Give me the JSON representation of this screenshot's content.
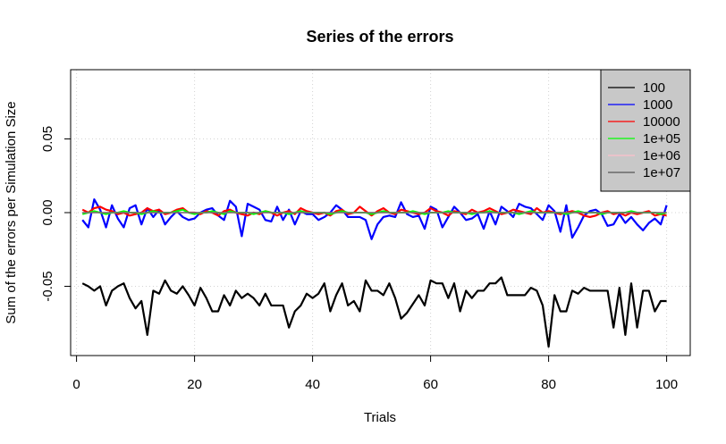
{
  "chart_data": {
    "type": "line",
    "title": "Series of the errors",
    "xlabel": "Trials",
    "ylabel": "Sum of the errors per Simulation Size",
    "xlim": [
      -1,
      104
    ],
    "ylim": [
      -0.097,
      0.097
    ],
    "x_ticks": [
      0,
      20,
      40,
      60,
      80,
      100
    ],
    "x_tick_labels": [
      "0",
      "20",
      "40",
      "60",
      "80",
      "100"
    ],
    "y_ticks": [
      -0.05,
      0.0,
      0.05
    ],
    "y_tick_labels": [
      "-0.05",
      "0.00",
      "0.05"
    ],
    "grid": true,
    "legend_position": "top-right",
    "x": [
      1,
      2,
      3,
      4,
      5,
      6,
      7,
      8,
      9,
      10,
      11,
      12,
      13,
      14,
      15,
      16,
      17,
      18,
      19,
      20,
      21,
      22,
      23,
      24,
      25,
      26,
      27,
      28,
      29,
      30,
      31,
      32,
      33,
      34,
      35,
      36,
      37,
      38,
      39,
      40,
      41,
      42,
      43,
      44,
      45,
      46,
      47,
      48,
      49,
      50,
      51,
      52,
      53,
      54,
      55,
      56,
      57,
      58,
      59,
      60,
      61,
      62,
      63,
      64,
      65,
      66,
      67,
      68,
      69,
      70,
      71,
      72,
      73,
      74,
      75,
      76,
      77,
      78,
      79,
      80,
      81,
      82,
      83,
      84,
      85,
      86,
      87,
      88,
      89,
      90,
      91,
      92,
      93,
      94,
      95,
      96,
      97,
      98,
      99,
      100
    ],
    "series": [
      {
        "name": "100",
        "color": "#000000",
        "values": [
          -0.048,
          -0.05,
          -0.053,
          -0.05,
          -0.063,
          -0.053,
          -0.05,
          -0.048,
          -0.058,
          -0.065,
          -0.06,
          -0.083,
          -0.053,
          -0.055,
          -0.046,
          -0.053,
          -0.055,
          -0.05,
          -0.056,
          -0.063,
          -0.051,
          -0.058,
          -0.067,
          -0.067,
          -0.056,
          -0.063,
          -0.053,
          -0.058,
          -0.055,
          -0.058,
          -0.063,
          -0.055,
          -0.063,
          -0.063,
          -0.063,
          -0.078,
          -0.067,
          -0.063,
          -0.055,
          -0.058,
          -0.055,
          -0.048,
          -0.067,
          -0.056,
          -0.048,
          -0.063,
          -0.06,
          -0.067,
          -0.046,
          -0.053,
          -0.053,
          -0.056,
          -0.048,
          -0.058,
          -0.072,
          -0.068,
          -0.062,
          -0.056,
          -0.063,
          -0.046,
          -0.048,
          -0.048,
          -0.058,
          -0.048,
          -0.067,
          -0.053,
          -0.058,
          -0.053,
          -0.053,
          -0.048,
          -0.048,
          -0.044,
          -0.056,
          -0.056,
          -0.056,
          -0.056,
          -0.051,
          -0.053,
          -0.063,
          -0.091,
          -0.056,
          -0.067,
          -0.067,
          -0.053,
          -0.055,
          -0.051,
          -0.053,
          -0.053,
          -0.053,
          -0.053,
          -0.078,
          -0.051,
          -0.083,
          -0.048,
          -0.078,
          -0.053,
          -0.053,
          -0.067,
          -0.06,
          -0.06
        ]
      },
      {
        "name": "1000",
        "color": "#0000ff",
        "values": [
          -0.005,
          -0.01,
          0.009,
          0.002,
          -0.01,
          0.005,
          -0.004,
          -0.01,
          0.003,
          0.005,
          -0.008,
          0.003,
          -0.003,
          0.002,
          -0.008,
          -0.003,
          0.001,
          -0.003,
          -0.005,
          -0.004,
          0.0,
          0.002,
          0.003,
          -0.002,
          -0.005,
          0.008,
          0.004,
          -0.016,
          0.006,
          0.004,
          0.002,
          -0.005,
          -0.006,
          0.004,
          -0.005,
          0.002,
          -0.008,
          0.001,
          -0.001,
          -0.001,
          -0.005,
          -0.003,
          0.0,
          0.005,
          0.002,
          -0.003,
          -0.003,
          -0.003,
          -0.005,
          -0.018,
          -0.008,
          -0.003,
          -0.002,
          -0.003,
          0.007,
          -0.001,
          -0.003,
          -0.002,
          -0.011,
          0.004,
          0.002,
          -0.01,
          -0.003,
          0.004,
          0.0,
          -0.005,
          -0.004,
          -0.001,
          -0.011,
          0.001,
          -0.008,
          0.004,
          0.001,
          -0.003,
          0.006,
          0.004,
          0.003,
          -0.001,
          -0.005,
          0.005,
          0.001,
          -0.013,
          0.005,
          -0.017,
          -0.01,
          -0.002,
          0.001,
          0.002,
          -0.001,
          -0.009,
          -0.008,
          -0.001,
          -0.007,
          -0.003,
          -0.008,
          -0.012,
          -0.007,
          -0.004,
          -0.008,
          0.005
        ]
      },
      {
        "name": "10000",
        "color": "#ff0000",
        "values": [
          0.002,
          0.0,
          0.003,
          0.004,
          0.002,
          0.001,
          -0.001,
          0.0,
          -0.002,
          -0.001,
          0.0,
          0.003,
          0.001,
          0.002,
          -0.001,
          0.0,
          0.002,
          0.003,
          0.0,
          0.0,
          -0.001,
          0.001,
          0.0,
          -0.002,
          0.001,
          0.002,
          0.0,
          -0.001,
          -0.002,
          0.0,
          -0.001,
          0.001,
          0.0,
          -0.002,
          0.0,
          0.001,
          -0.001,
          0.003,
          0.001,
          0.0,
          -0.001,
          0.0,
          -0.002,
          0.001,
          0.002,
          -0.001,
          0.0,
          0.004,
          0.001,
          -0.002,
          0.001,
          0.003,
          0.0,
          -0.001,
          0.002,
          0.001,
          0.0,
          -0.001,
          0.0,
          0.003,
          0.001,
          0.0,
          -0.002,
          0.001,
          0.0,
          -0.001,
          0.002,
          0.0,
          0.001,
          0.003,
          0.001,
          -0.001,
          0.0,
          0.002,
          0.001,
          0.0,
          -0.001,
          0.003,
          0.0,
          0.001,
          0.0,
          -0.001,
          0.0,
          0.001,
          0.0,
          -0.002,
          -0.003,
          -0.002,
          0.0,
          0.001,
          -0.001,
          0.0,
          -0.002,
          0.0,
          -0.001,
          0.0,
          0.001,
          -0.002,
          -0.001,
          -0.002
        ]
      },
      {
        "name": "1e+05",
        "color": "#00ff00",
        "values": [
          -0.001,
          0.0,
          0.001,
          0.0,
          -0.001,
          0.0,
          0.0,
          0.001,
          0.0,
          0.0,
          -0.001,
          0.0,
          0.001,
          0.0,
          0.0,
          0.0,
          0.001,
          0.002,
          0.0,
          -0.001,
          0.0,
          0.0,
          0.001,
          0.0,
          -0.001,
          0.001,
          0.0,
          0.0,
          0.0,
          -0.001,
          0.0,
          0.001,
          0.0,
          0.0,
          0.0,
          -0.001,
          0.0,
          0.001,
          0.0,
          0.0,
          0.0,
          0.0,
          -0.001,
          0.0,
          0.001,
          0.0,
          0.0,
          0.0,
          0.0,
          -0.001,
          0.0,
          0.001,
          0.0,
          0.0,
          0.0,
          0.0,
          0.001,
          0.0,
          -0.001,
          0.0,
          0.0,
          0.0,
          0.001,
          0.0,
          0.0,
          0.0,
          -0.001,
          0.0,
          0.0,
          0.001,
          0.0,
          0.0,
          0.0,
          0.0,
          -0.001,
          0.0,
          0.001,
          0.0,
          0.0,
          0.0,
          0.0,
          0.0,
          -0.001,
          0.0,
          0.001,
          0.0,
          0.0,
          0.0,
          -0.001,
          0.0,
          0.0,
          0.0,
          0.0,
          0.001,
          0.0,
          0.0,
          0.0,
          0.0,
          -0.001,
          0.0
        ]
      },
      {
        "name": "1e+06",
        "color": "#ffc0cb",
        "values": [
          0.0,
          0.0,
          0.0,
          0.0,
          0.0,
          0.0,
          0.0,
          0.0,
          0.0,
          0.0,
          0.0,
          0.0,
          0.0,
          0.0,
          0.0,
          0.0,
          0.0,
          0.0,
          0.0,
          0.0,
          0.0,
          0.0,
          0.0,
          0.0,
          0.0,
          0.0,
          0.0,
          0.0,
          0.0,
          0.0,
          0.0,
          0.0,
          0.0,
          0.0,
          0.0,
          0.0,
          0.0,
          0.0,
          0.0,
          0.0,
          0.0,
          0.0,
          0.0,
          0.0,
          0.0,
          0.0,
          0.0,
          0.0,
          0.0,
          0.0,
          0.0,
          0.0,
          0.0,
          0.0,
          0.0,
          0.0,
          0.0,
          0.0,
          0.0,
          0.0,
          0.0,
          0.0,
          0.0,
          0.0,
          0.0,
          0.0,
          0.0,
          0.0,
          0.0,
          0.0,
          0.0,
          0.0,
          0.0,
          0.0,
          0.0,
          0.0,
          0.0,
          0.0,
          0.0,
          0.0,
          0.0,
          0.0,
          0.0,
          0.0,
          0.0,
          0.0,
          0.0,
          0.0,
          0.0,
          0.0,
          0.0,
          0.0,
          0.0,
          0.0,
          0.0,
          0.0,
          0.0,
          0.0,
          0.0,
          0.0
        ]
      },
      {
        "name": "1e+07",
        "color": "#555555",
        "values": [
          0.0,
          0.0,
          0.0,
          0.0,
          0.0,
          0.0,
          0.0,
          0.0,
          0.0,
          0.0,
          0.0,
          0.0,
          0.0,
          0.0,
          0.0,
          0.0,
          0.0,
          0.0,
          0.0,
          0.0,
          0.0,
          0.0,
          0.0,
          0.0,
          0.0,
          0.0,
          0.0,
          0.0,
          0.0,
          0.0,
          0.0,
          0.0,
          0.0,
          0.0,
          0.0,
          0.0,
          0.0,
          0.0,
          0.0,
          0.0,
          0.0,
          0.0,
          0.0,
          0.0,
          0.0,
          0.0,
          0.0,
          0.0,
          0.0,
          0.0,
          0.0,
          0.0,
          0.0,
          0.0,
          0.0,
          0.0,
          0.0,
          0.0,
          0.0,
          0.0,
          0.0,
          0.0,
          0.0,
          0.0,
          0.0,
          0.0,
          0.0,
          0.0,
          0.0,
          0.0,
          0.0,
          0.0,
          0.0,
          0.0,
          0.0,
          0.0,
          0.0,
          0.0,
          0.0,
          0.0,
          0.0,
          0.0,
          0.0,
          0.0,
          0.0,
          0.0,
          0.0,
          0.0,
          0.0,
          0.0,
          0.0,
          0.0,
          0.0,
          0.0,
          0.0,
          0.0,
          0.0,
          0.0,
          0.0,
          0.0
        ]
      }
    ],
    "legend_background": "#c8c8c8"
  }
}
